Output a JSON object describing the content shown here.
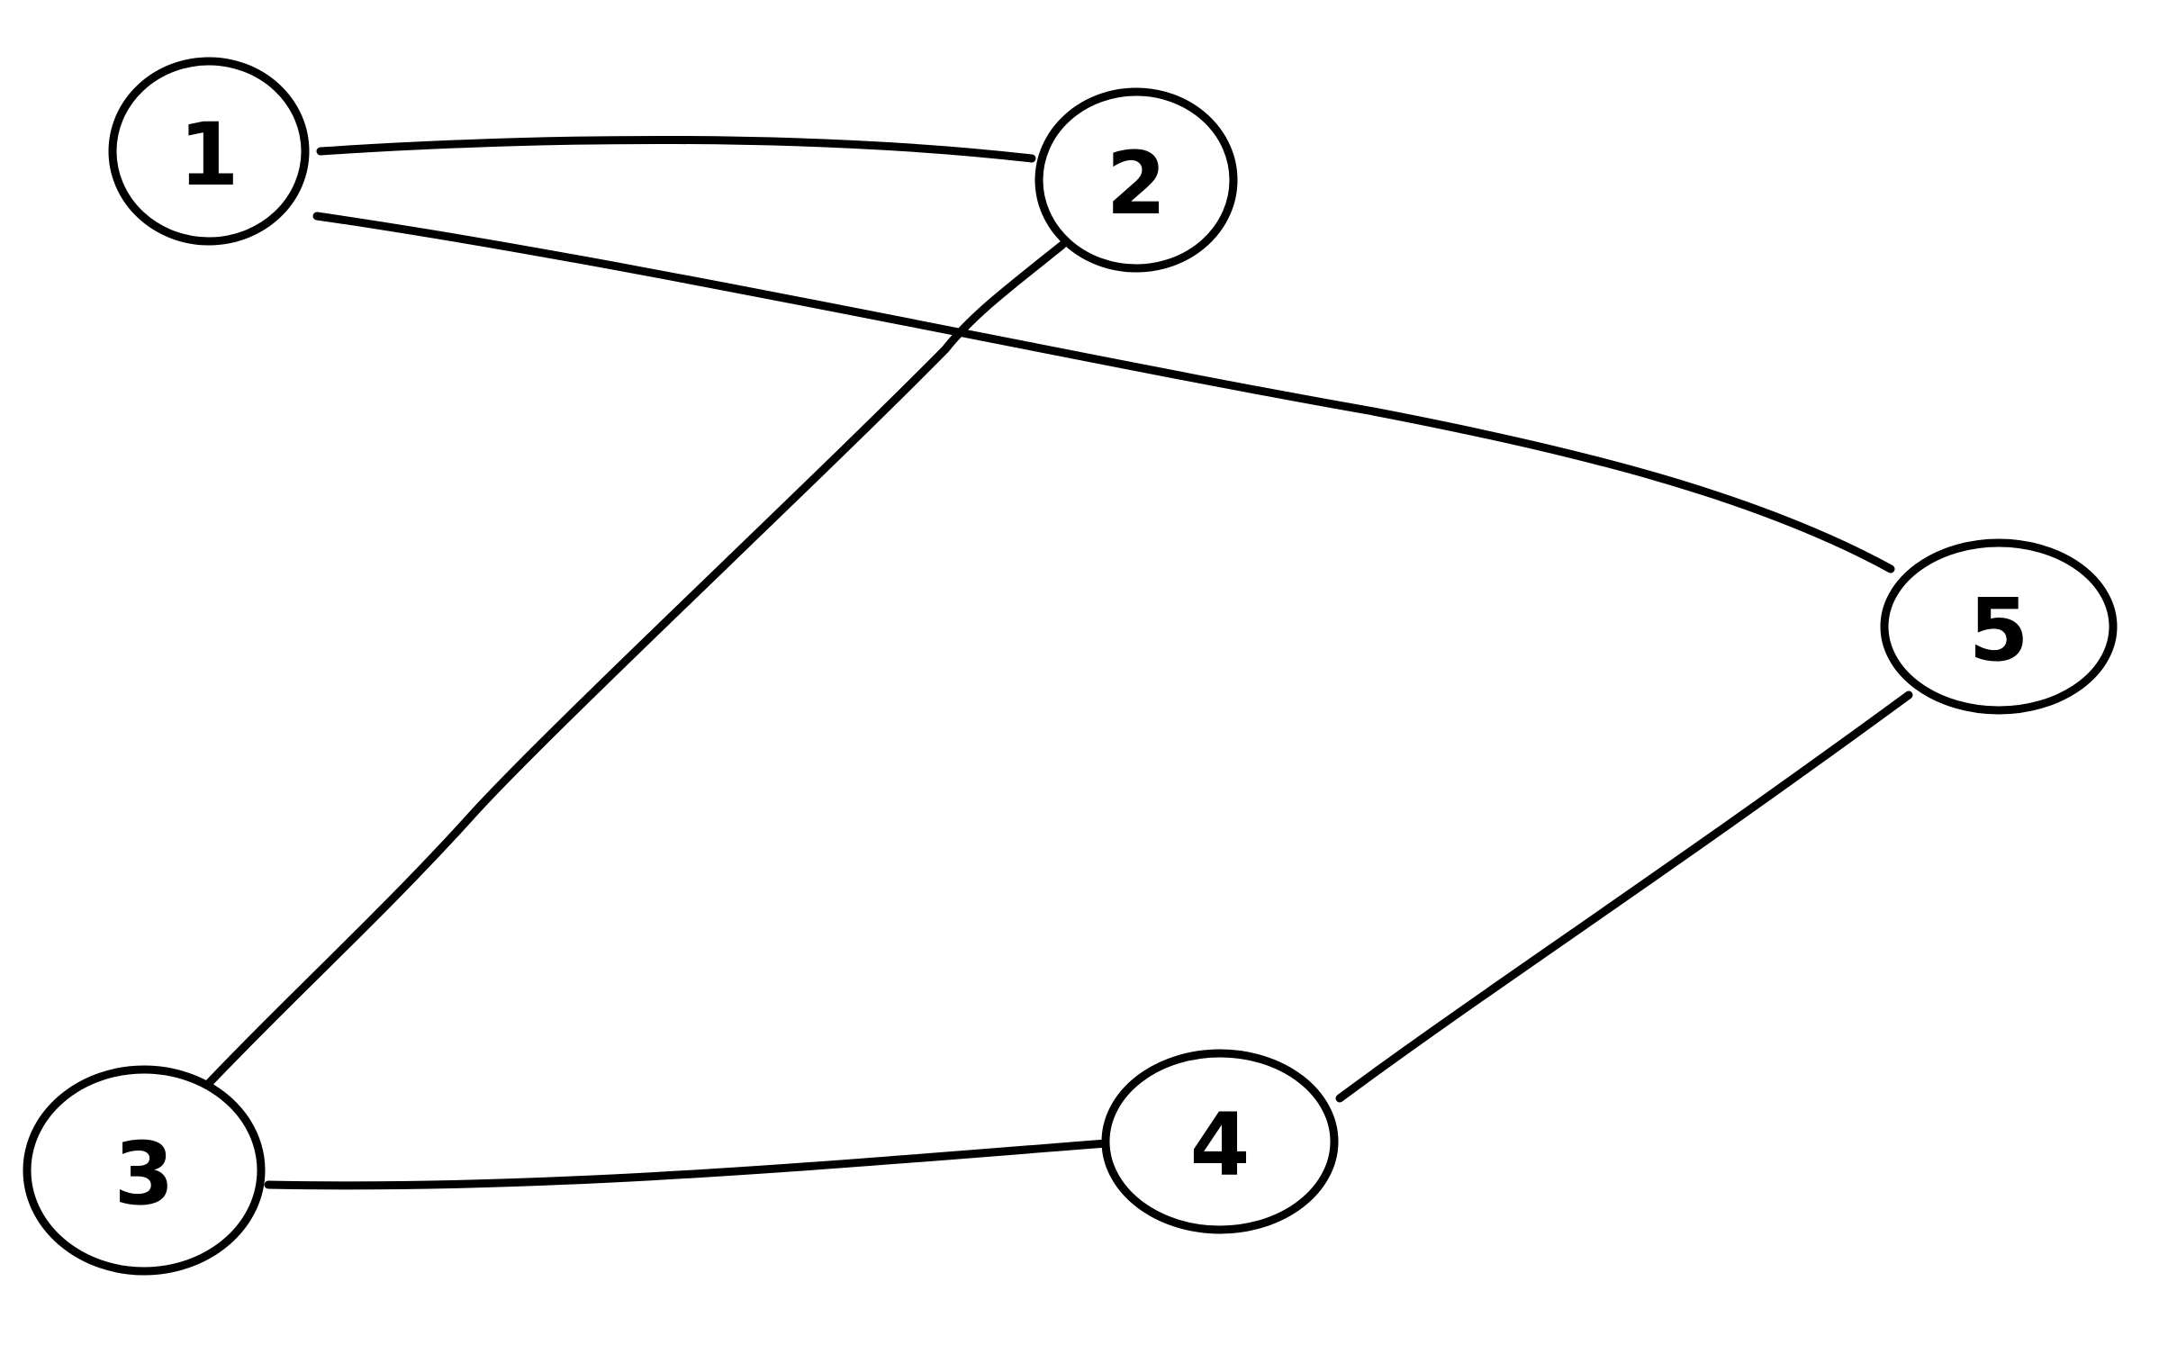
{
  "diagram": {
    "type": "graph",
    "directed": false,
    "nodes": [
      {
        "id": "1",
        "label": "1"
      },
      {
        "id": "2",
        "label": "2"
      },
      {
        "id": "3",
        "label": "3"
      },
      {
        "id": "4",
        "label": "4"
      },
      {
        "id": "5",
        "label": "5"
      }
    ],
    "edges": [
      {
        "from": "1",
        "to": "2"
      },
      {
        "from": "1",
        "to": "5"
      },
      {
        "from": "2",
        "to": "3"
      },
      {
        "from": "3",
        "to": "4"
      },
      {
        "from": "4",
        "to": "5"
      }
    ],
    "colors": {
      "stroke": "#000000",
      "background": "#ffffff"
    }
  }
}
